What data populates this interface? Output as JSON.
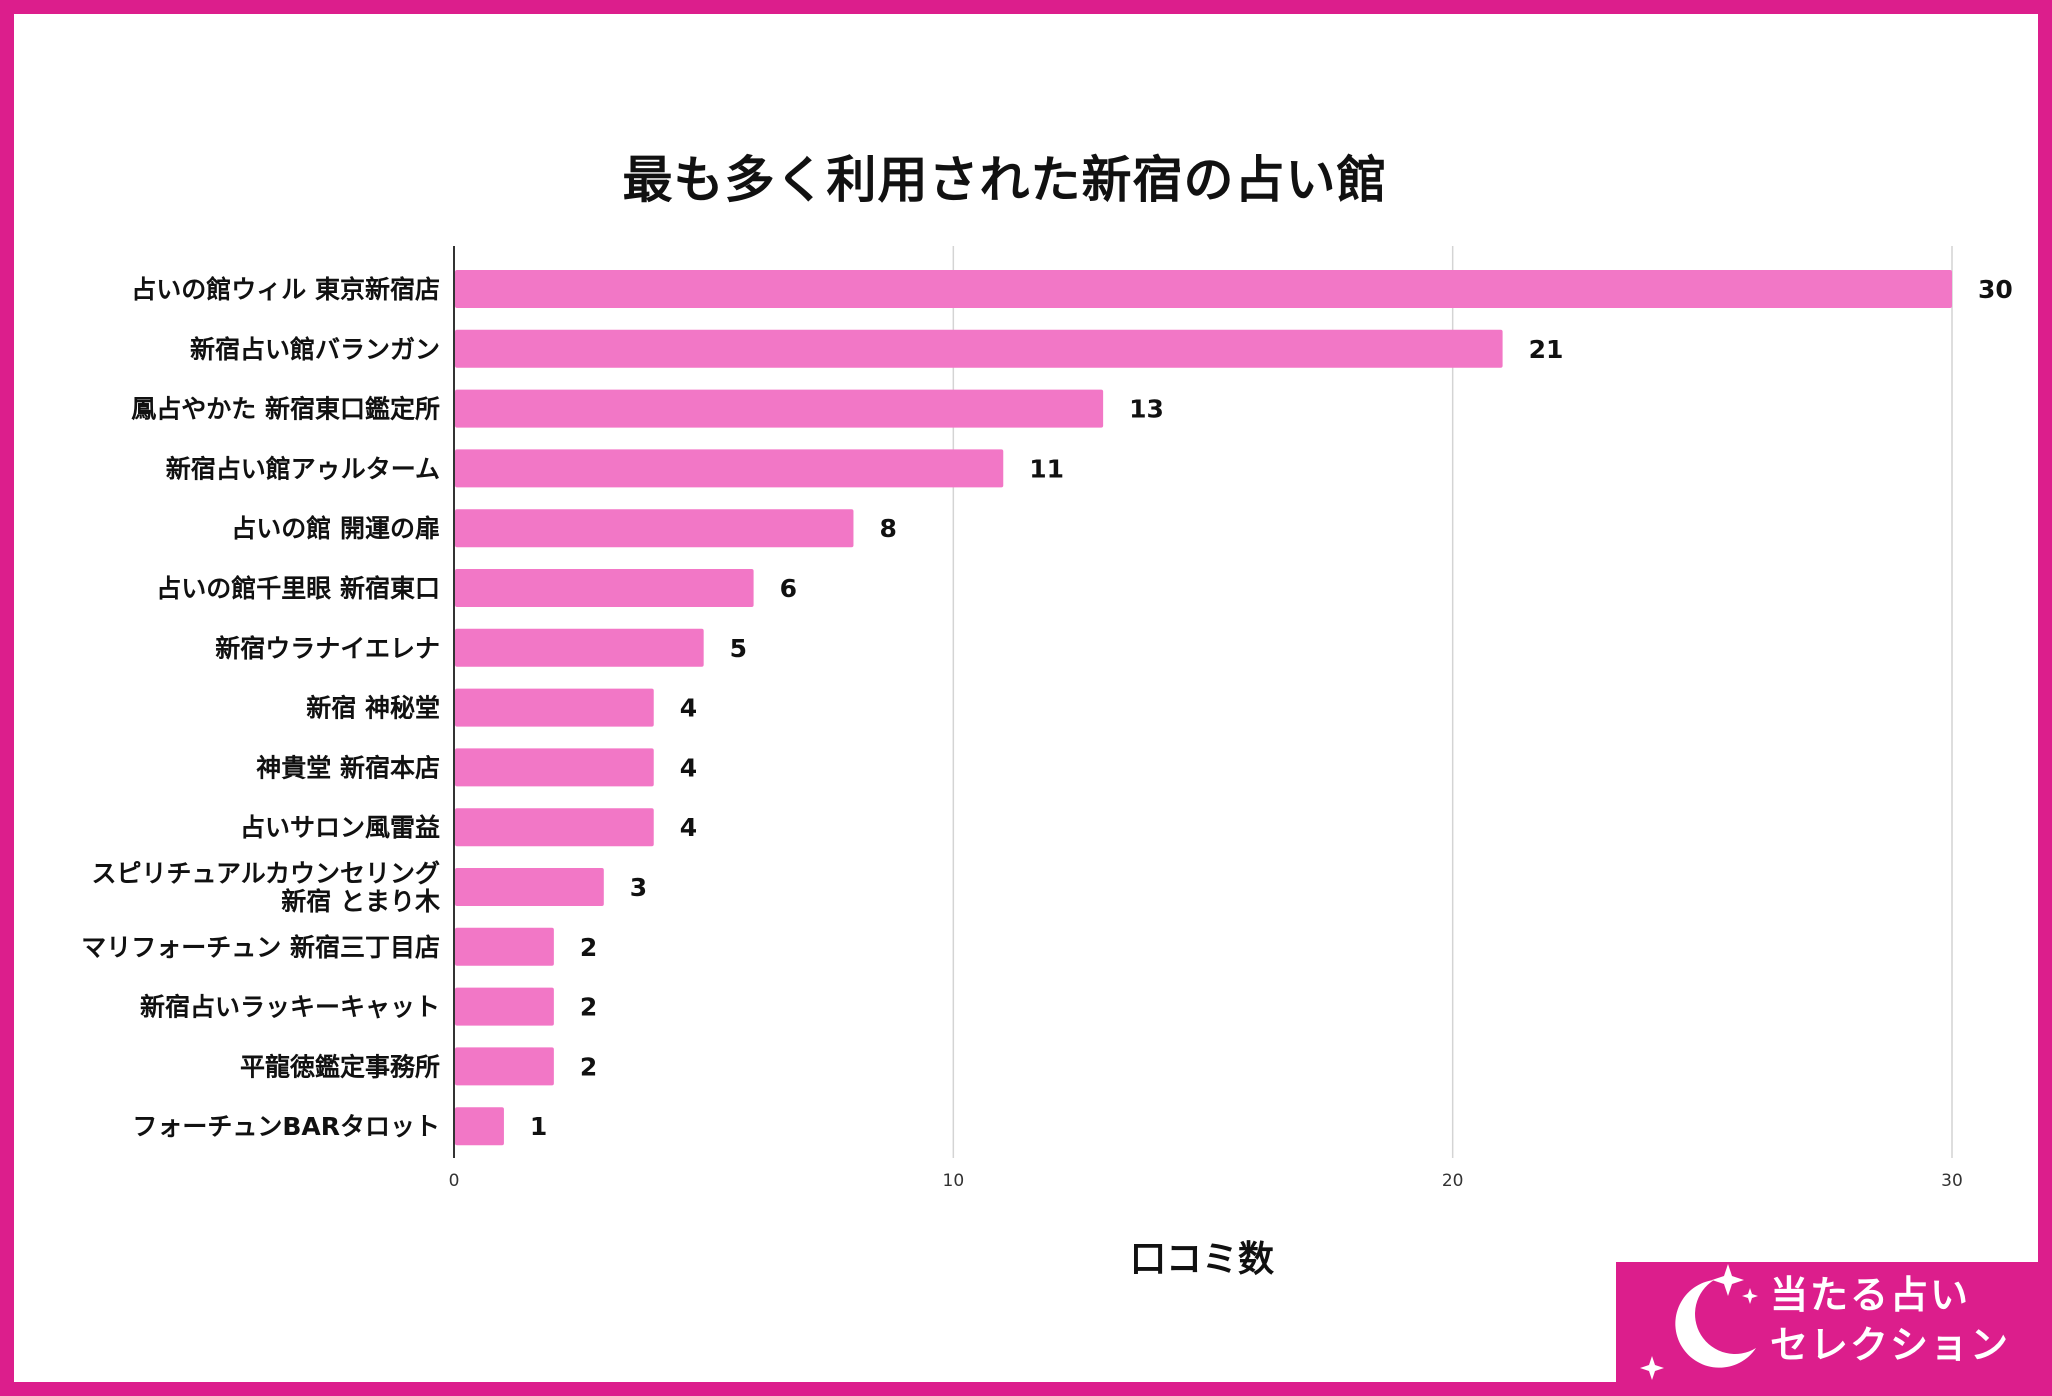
{
  "chart_data": {
    "type": "bar",
    "orientation": "horizontal",
    "title": "最も多く利用された新宿の占い館",
    "xlabel": "口コミ数",
    "ylabel": "",
    "xlim": [
      0,
      30
    ],
    "xticks": [
      "0",
      "10",
      "20",
      "30"
    ],
    "grid": true,
    "bar_color": "#f277c6",
    "categories": [
      "占いの館ウィル 東京新宿店",
      "新宿占い館バランガン",
      "鳳占やかた 新宿東口鑑定所",
      "新宿占い館アゥルターム",
      "占いの館 開運の扉",
      "占いの館千里眼 新宿東口",
      "新宿ウラナイエレナ",
      "新宿 神秘堂",
      "神貴堂 新宿本店",
      "占いサロン風雷益",
      "スピリチュアルカウンセリング\n新宿 とまり木",
      "マリフォーチュン 新宿三丁目店",
      "新宿占いラッキーキャット",
      "平龍徳鑑定事務所",
      "フォーチュンBARタロット"
    ],
    "values": [
      30,
      21,
      13,
      11,
      8,
      6,
      5,
      4,
      4,
      4,
      3,
      2,
      2,
      2,
      1
    ]
  },
  "branding": {
    "logo_line1": "当たる占い",
    "logo_line2": "セレクション",
    "frame_color": "#dc1e8c"
  }
}
